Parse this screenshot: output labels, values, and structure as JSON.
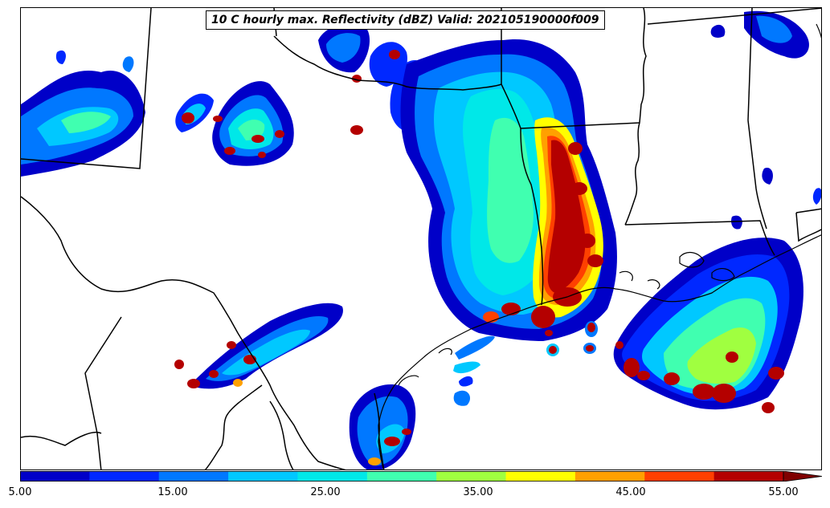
{
  "title": "10 C hourly max. Reflectivity (dBZ) Valid: 202105190000f009",
  "colorbar": {
    "labels": [
      "5.00",
      "15.00",
      "25.00",
      "35.00",
      "45.00",
      "55.00"
    ],
    "levels": [
      5,
      10,
      15,
      20,
      25,
      30,
      35,
      40,
      45,
      50,
      55
    ],
    "colors": [
      "#0000c8",
      "#0028ff",
      "#0078ff",
      "#00c8ff",
      "#00e8e8",
      "#40ffb0",
      "#a0ff40",
      "#ffff00",
      "#ffa000",
      "#ff4000",
      "#b40000"
    ],
    "extend_color": "#800000"
  }
}
